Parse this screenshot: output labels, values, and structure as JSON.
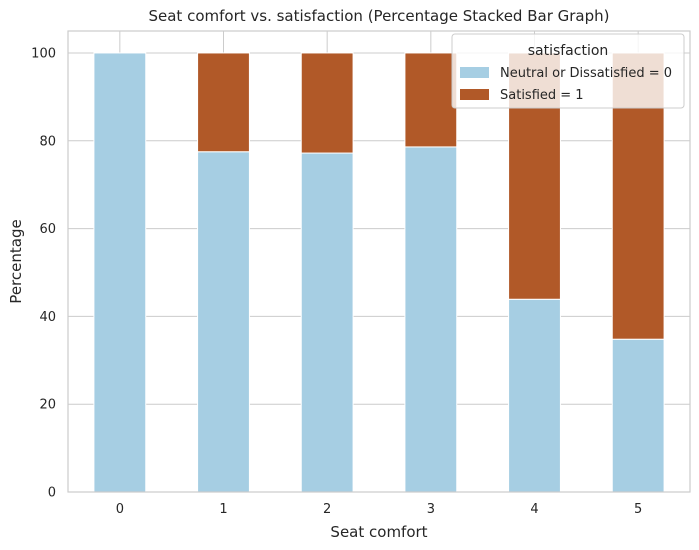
{
  "chart_data": {
    "type": "bar",
    "stacked": true,
    "title": "Seat comfort vs. satisfaction (Percentage Stacked Bar Graph)",
    "xlabel": "Seat comfort",
    "ylabel": "Percentage",
    "categories": [
      "0",
      "1",
      "2",
      "3",
      "4",
      "5"
    ],
    "ylim": [
      0,
      105
    ],
    "yticks": [
      0,
      20,
      40,
      60,
      80,
      100
    ],
    "grid": true,
    "legend": {
      "title": "satisfaction",
      "placement": "top-right"
    },
    "series": [
      {
        "name": "Neutral or Dissatisfied = 0",
        "color": "#a6cee3",
        "values": [
          100,
          77.5,
          77.2,
          78.6,
          43.9,
          34.8
        ]
      },
      {
        "name": "Satisfied = 1",
        "color": "#b15928",
        "values": [
          0,
          22.5,
          22.8,
          21.4,
          56.1,
          65.2
        ]
      }
    ]
  }
}
